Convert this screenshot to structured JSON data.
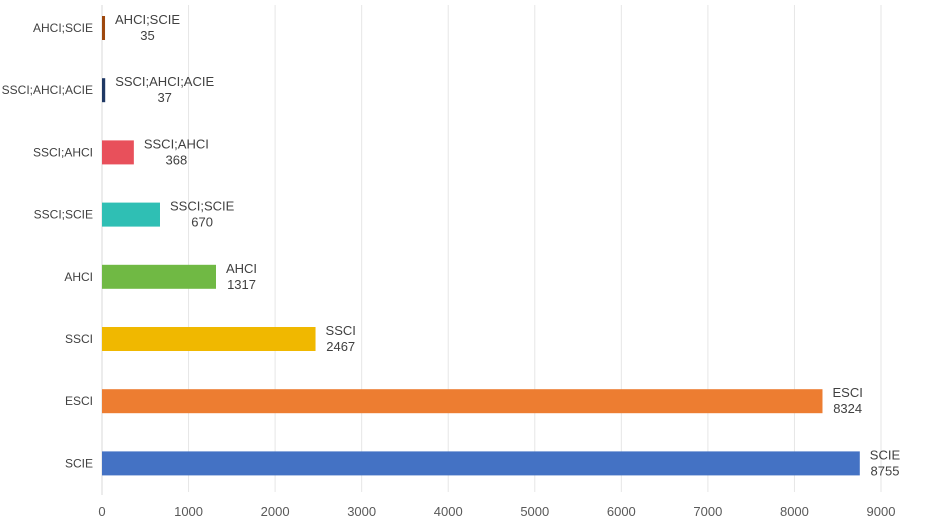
{
  "chart_data": {
    "type": "bar",
    "orientation": "horizontal",
    "title": "",
    "xlabel": "",
    "ylabel": "",
    "categories": [
      "SCIE",
      "ESCI",
      "SSCI",
      "AHCI",
      "SSCI;SCIE",
      "SSCI;AHCI",
      "SSCI;AHCI;ACIE",
      "AHCI;SCIE"
    ],
    "values": [
      8755,
      8324,
      2467,
      1317,
      670,
      368,
      37,
      35
    ],
    "colors": [
      "#4472c4",
      "#ed7d31",
      "#f0b800",
      "#70b944",
      "#2fbfb4",
      "#e8505b",
      "#1f3864",
      "#9e480e"
    ],
    "xlim": [
      0,
      9000
    ],
    "xticks": [
      0,
      1000,
      2000,
      3000,
      4000,
      5000,
      6000,
      7000,
      8000,
      9000
    ],
    "grid": true,
    "legend": "none",
    "data_labels": "category and value"
  }
}
